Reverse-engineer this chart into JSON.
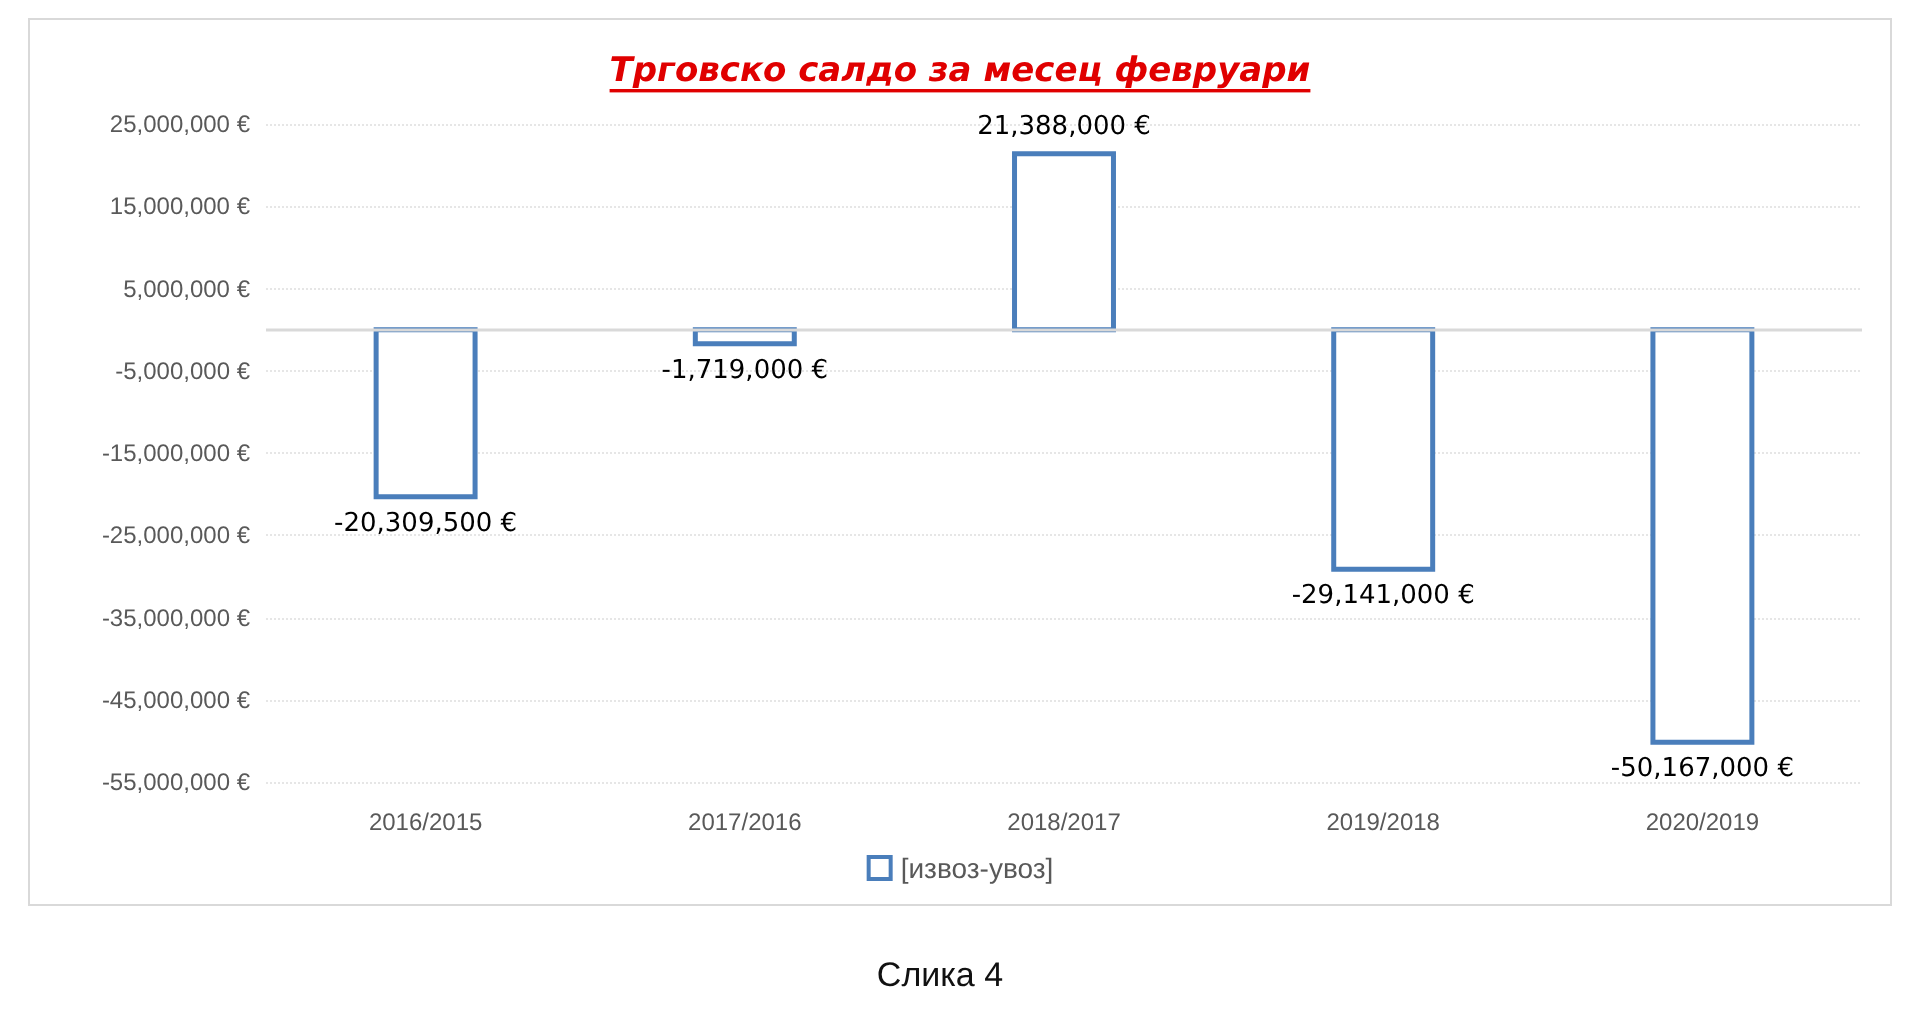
{
  "chart_data": {
    "type": "bar",
    "title": "Трговско салдо за месец февруари",
    "categories": [
      "2016/2015",
      "2017/2016",
      "2018/2017",
      "2019/2018",
      "2020/2019"
    ],
    "series": [
      {
        "name": "[извоз-увоз]",
        "color": "#4a7ebb",
        "values": [
          -20309500,
          -1719000,
          21388000,
          -29141000,
          -50167000
        ],
        "value_labels": [
          "-20,309,500 €",
          "-1,719,000 €",
          "21,388,000 €",
          "-29,141,000 €",
          "-50,167,000 €"
        ]
      }
    ],
    "ylim": [
      -55000000,
      25000000
    ],
    "yticks": [
      {
        "value": 25000000,
        "label": "25,000,000 €"
      },
      {
        "value": 15000000,
        "label": "15,000,000 €"
      },
      {
        "value": 5000000,
        "label": "5,000,000 €"
      },
      {
        "value": -5000000,
        "label": "-5,000,000 €"
      },
      {
        "value": -15000000,
        "label": "-15,000,000 €"
      },
      {
        "value": -25000000,
        "label": "-25,000,000 €"
      },
      {
        "value": -35000000,
        "label": "-35,000,000 €"
      },
      {
        "value": -45000000,
        "label": "-45,000,000 €"
      },
      {
        "value": -55000000,
        "label": "-55,000,000 €"
      }
    ],
    "ref_lines": [
      {
        "axis": "y",
        "value": 0,
        "color": "#d9d9d9"
      }
    ],
    "grid": "y",
    "legend": "bottom",
    "annotations": [
      "Слика 4"
    ]
  }
}
